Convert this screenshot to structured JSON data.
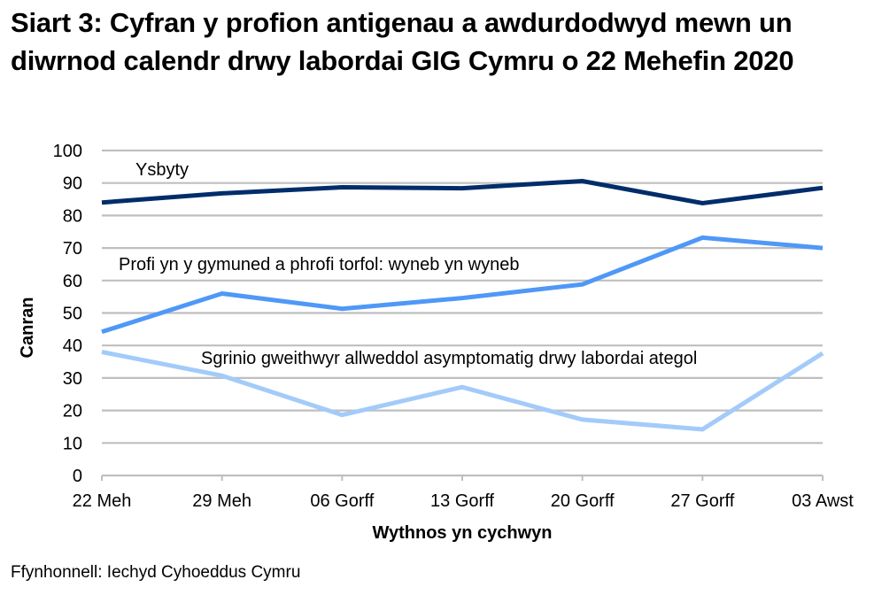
{
  "title": "Siart 3: Cyfran y profion antigenau a awdurdodwyd mewn un diwrnod calendr drwy labordai GIG Cymru o 22 Mehefin 2020",
  "source": "Ffynhonnell: Iechyd Cyhoeddus Cymru",
  "chart_data": {
    "type": "line",
    "title": "Siart 3: Cyfran y profion antigenau a awdurdodwyd mewn un diwrnod calendr drwy labordai GIG Cymru o 22 Mehefin 2020",
    "xlabel": "Wythnos yn cychwyn",
    "ylabel": "Canran",
    "ylim": [
      0,
      100
    ],
    "yticks": [
      0,
      10,
      20,
      30,
      40,
      50,
      60,
      70,
      80,
      90,
      100
    ],
    "grid": true,
    "legend_position": "inline labels",
    "categories": [
      "22 Meh",
      "29 Meh",
      "06 Gorff",
      "13 Gorff",
      "20 Gorff",
      "27 Gorff",
      "03 Awst"
    ],
    "series": [
      {
        "name": "Ysbyty",
        "color": "#002d6a",
        "values": [
          84.0,
          86.8,
          88.7,
          88.4,
          90.6,
          83.8,
          88.5
        ],
        "label_pos": [
          153,
          198
        ]
      },
      {
        "name": "Profi yn y gymuned a phrofi torfol: wyneb yn wyneb",
        "color": "#4f98f7",
        "values": [
          44.2,
          56.0,
          51.3,
          54.6,
          58.8,
          73.2,
          70.0
        ],
        "label_pos": [
          134,
          305
        ]
      },
      {
        "name": "Sgrinio gweithwyr allweddol asymptomatig drwy labordai ategol",
        "color": "#a3cbfa",
        "values": [
          38.0,
          30.7,
          18.6,
          27.2,
          17.2,
          14.2,
          37.6
        ],
        "label_pos": [
          227,
          411
        ]
      }
    ]
  },
  "source_label": "Ffynhonnell: Iechyd Cyhoeddus Cymru"
}
